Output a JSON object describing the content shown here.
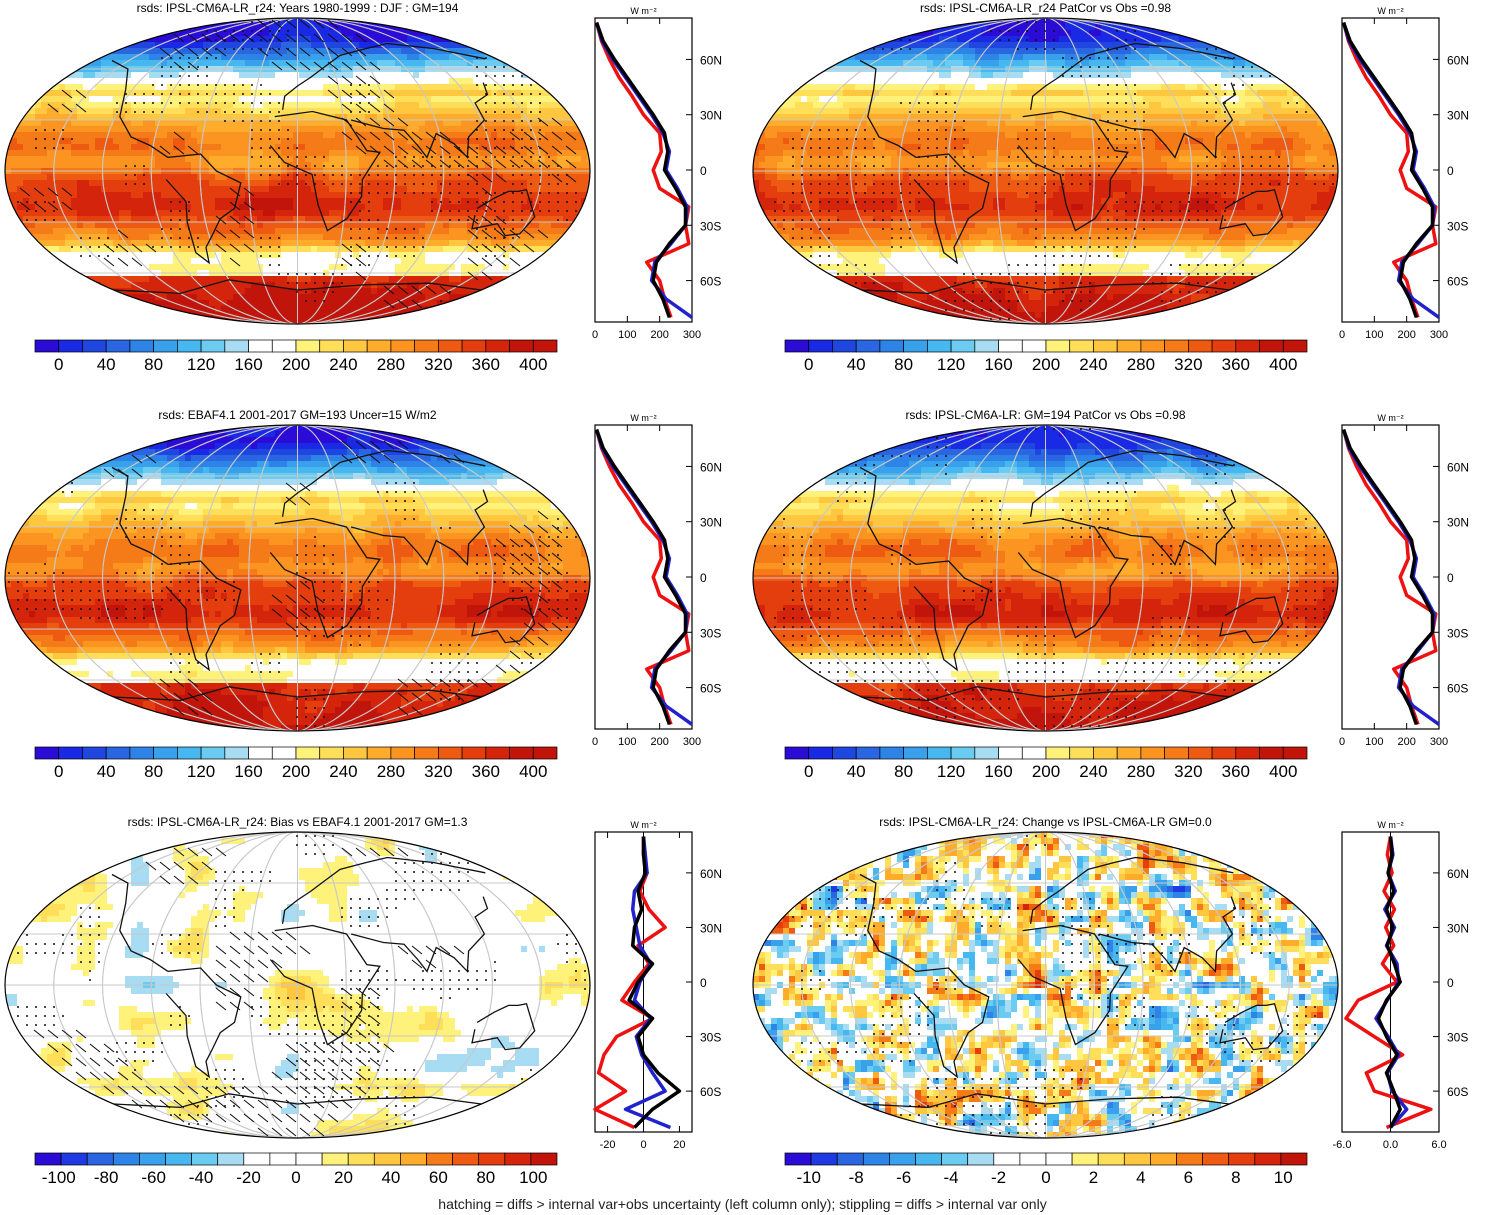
{
  "figure": {
    "footnote": "hatching = diffs > internal var+obs uncertainty (left column only); stippling = diffs > internal var only",
    "colors": {
      "model": "#000000",
      "obs": "#2222cc",
      "other": "#ee1111"
    }
  },
  "chart_data": [
    {
      "type": "heatmap",
      "title": "rsds: IPSL-CM6A-LR_r24: Years 1980-1999 : DJF : GM=194",
      "kind": "abs",
      "hatch": true,
      "stipple": true,
      "colorbar": {
        "ticks": [
          "0",
          "40",
          "80",
          "120",
          "160",
          "200",
          "240",
          "280",
          "320",
          "360",
          "400"
        ],
        "min": -20,
        "max": 420
      },
      "profile": {
        "unit": "W m⁻²",
        "lat_ticks": [
          "60N",
          "30N",
          "0",
          "30S",
          "60S"
        ],
        "x_ticks": [
          "0",
          "100",
          "200",
          "300"
        ],
        "xlim": [
          0,
          300
        ],
        "lat": [
          80,
          70,
          60,
          50,
          40,
          30,
          20,
          10,
          0,
          -10,
          -20,
          -30,
          -40,
          -50,
          -60,
          -70,
          -80
        ],
        "series": [
          {
            "color": "model",
            "values": [
              5,
              25,
              60,
              100,
              140,
              180,
              215,
              225,
              215,
              250,
              280,
              280,
              230,
              190,
              180,
              210,
              230
            ]
          },
          {
            "color": "obs",
            "values": [
              5,
              22,
              55,
              95,
              135,
              175,
              210,
              230,
              220,
              255,
              285,
              280,
              235,
              185,
              175,
              220,
              300
            ]
          },
          {
            "color": "other",
            "values": [
              5,
              20,
              45,
              75,
              115,
              150,
              200,
              205,
              180,
              200,
              290,
              280,
              290,
              160,
              200,
              215,
              235
            ]
          }
        ]
      }
    },
    {
      "type": "heatmap",
      "title": "rsds: IPSL-CM6A-LR_r24 PatCor vs Obs =0.98",
      "kind": "abs",
      "hatch": false,
      "stipple": true,
      "colorbar": {
        "ticks": [
          "0",
          "40",
          "80",
          "120",
          "160",
          "200",
          "240",
          "280",
          "320",
          "360",
          "400"
        ],
        "min": -20,
        "max": 420
      },
      "profile": {
        "unit": "W m⁻²",
        "lat_ticks": [
          "60N",
          "30N",
          "0",
          "30S",
          "60S"
        ],
        "x_ticks": [
          "0",
          "100",
          "200",
          "300"
        ],
        "xlim": [
          0,
          300
        ],
        "lat": [
          80,
          70,
          60,
          50,
          40,
          30,
          20,
          10,
          0,
          -10,
          -20,
          -30,
          -40,
          -50,
          -60,
          -70,
          -80
        ],
        "series": [
          {
            "color": "model",
            "values": [
              5,
              25,
              60,
              100,
              140,
              180,
              215,
              225,
              215,
              250,
              280,
              280,
              230,
              190,
              180,
              210,
              230
            ]
          },
          {
            "color": "obs",
            "values": [
              5,
              22,
              55,
              95,
              135,
              175,
              210,
              230,
              220,
              255,
              285,
              280,
              235,
              185,
              175,
              220,
              300
            ]
          },
          {
            "color": "other",
            "values": [
              5,
              20,
              45,
              75,
              115,
              150,
              200,
              205,
              180,
              200,
              290,
              280,
              290,
              160,
              200,
              215,
              235
            ]
          }
        ]
      }
    },
    {
      "type": "heatmap",
      "title": "rsds: EBAF4.1 2001-2017 GM=193 Uncer=15 W/m2",
      "kind": "abs",
      "hatch": true,
      "stipple": true,
      "colorbar": {
        "ticks": [
          "0",
          "40",
          "80",
          "120",
          "160",
          "200",
          "240",
          "280",
          "320",
          "360",
          "400"
        ],
        "min": -20,
        "max": 420
      },
      "profile": {
        "unit": "W m⁻²",
        "lat_ticks": [
          "60N",
          "30N",
          "0",
          "30S",
          "60S"
        ],
        "x_ticks": [
          "0",
          "100",
          "200",
          "300"
        ],
        "xlim": [
          0,
          300
        ],
        "lat": [
          80,
          70,
          60,
          50,
          40,
          30,
          20,
          10,
          0,
          -10,
          -20,
          -30,
          -40,
          -50,
          -60,
          -70,
          -80
        ],
        "series": [
          {
            "color": "model",
            "values": [
              5,
              25,
              60,
              100,
              140,
              180,
              215,
              225,
              215,
              250,
              280,
              280,
              230,
              190,
              180,
              210,
              230
            ]
          },
          {
            "color": "obs",
            "values": [
              5,
              22,
              55,
              95,
              135,
              175,
              210,
              230,
              220,
              255,
              285,
              280,
              235,
              185,
              175,
              220,
              300
            ]
          },
          {
            "color": "other",
            "values": [
              5,
              20,
              45,
              75,
              115,
              150,
              200,
              205,
              180,
              200,
              290,
              280,
              290,
              160,
              200,
              215,
              235
            ]
          }
        ]
      }
    },
    {
      "type": "heatmap",
      "title": "rsds: IPSL-CM6A-LR: GM=194 PatCor vs Obs =0.98",
      "kind": "abs",
      "hatch": false,
      "stipple": true,
      "colorbar": {
        "ticks": [
          "0",
          "40",
          "80",
          "120",
          "160",
          "200",
          "240",
          "280",
          "320",
          "360",
          "400"
        ],
        "min": -20,
        "max": 420
      },
      "profile": {
        "unit": "W m⁻²",
        "lat_ticks": [
          "60N",
          "30N",
          "0",
          "30S",
          "60S"
        ],
        "x_ticks": [
          "0",
          "100",
          "200",
          "300"
        ],
        "xlim": [
          0,
          300
        ],
        "lat": [
          80,
          70,
          60,
          50,
          40,
          30,
          20,
          10,
          0,
          -10,
          -20,
          -30,
          -40,
          -50,
          -60,
          -70,
          -80
        ],
        "series": [
          {
            "color": "model",
            "values": [
              5,
              25,
              60,
              100,
              140,
              180,
              215,
              225,
              215,
              250,
              280,
              280,
              230,
              190,
              180,
              210,
              230
            ]
          },
          {
            "color": "obs",
            "values": [
              5,
              22,
              55,
              95,
              135,
              175,
              210,
              230,
              220,
              255,
              285,
              280,
              235,
              185,
              175,
              220,
              300
            ]
          },
          {
            "color": "other",
            "values": [
              5,
              20,
              45,
              75,
              115,
              150,
              200,
              205,
              180,
              200,
              290,
              280,
              290,
              160,
              200,
              215,
              235
            ]
          }
        ]
      }
    },
    {
      "type": "heatmap",
      "title": "rsds: IPSL-CM6A-LR_r24: Bias vs EBAF4.1 2001-2017 GM=1.3",
      "kind": "bias",
      "hatch": true,
      "stipple": true,
      "colorbar": {
        "ticks": [
          "-100",
          "-80",
          "-60",
          "-40",
          "-20",
          "0",
          "20",
          "40",
          "60",
          "80",
          "100"
        ],
        "min": -110,
        "max": 110
      },
      "profile": {
        "unit": "W m⁻²",
        "lat_ticks": [
          "60N",
          "30N",
          "0",
          "30S",
          "60S"
        ],
        "x_ticks": [
          "-20",
          "0",
          "20"
        ],
        "xlim": [
          -27,
          27
        ],
        "lat": [
          80,
          70,
          60,
          50,
          40,
          30,
          20,
          10,
          0,
          -10,
          -20,
          -30,
          -40,
          -50,
          -60,
          -70,
          -80
        ],
        "series": [
          {
            "color": "model",
            "values": [
              0,
              0,
              1,
              -3,
              -1,
              -5,
              -6,
              5,
              -3,
              -8,
              5,
              -3,
              0,
              8,
              20,
              5,
              -5
            ]
          },
          {
            "color": "obs",
            "values": [
              0,
              1,
              2,
              -5,
              -6,
              -4,
              -2,
              4,
              -2,
              -5,
              4,
              -4,
              -1,
              5,
              12,
              -10,
              15
            ]
          },
          {
            "color": "other",
            "values": [
              0,
              0,
              2,
              -2,
              3,
              12,
              -3,
              3,
              -5,
              -12,
              5,
              -15,
              -22,
              -25,
              -10,
              -30,
              -5
            ]
          }
        ]
      }
    },
    {
      "type": "heatmap",
      "title": "rsds: IPSL-CM6A-LR_r24: Change vs IPSL-CM6A-LR GM=0.0",
      "kind": "change",
      "hatch": false,
      "stipple": true,
      "colorbar": {
        "ticks": [
          "-10",
          "-8",
          "-6",
          "-4",
          "-2",
          "0",
          "2",
          "4",
          "6",
          "8",
          "10"
        ],
        "min": -11,
        "max": 11
      },
      "profile": {
        "unit": "W m⁻²",
        "lat_ticks": [
          "60N",
          "30N",
          "0",
          "30S",
          "60S"
        ],
        "x_ticks": [
          "-6.0",
          "0.0",
          "6.0"
        ],
        "xlim": [
          -6,
          6
        ],
        "lat": [
          80,
          70,
          60,
          50,
          40,
          30,
          20,
          10,
          0,
          -10,
          -20,
          -30,
          -40,
          -50,
          -60,
          -70,
          -80
        ],
        "series": [
          {
            "color": "model",
            "values": [
              0,
              0.2,
              -0.3,
              0.4,
              -0.5,
              0.3,
              -0.4,
              0.5,
              1.2,
              -0.5,
              -1.5,
              -0.5,
              0.8,
              -0.5,
              0.4,
              1.2,
              0
            ]
          },
          {
            "color": "obs",
            "values": [
              0,
              0.3,
              -0.3,
              0.6,
              -0.7,
              0.5,
              -0.5,
              0.8,
              1.0,
              -0.4,
              -1.8,
              -0.3,
              1.0,
              -0.4,
              0.2,
              2.0,
              0
            ]
          },
          {
            "color": "other",
            "values": [
              0,
              -0.4,
              0.2,
              -0.8,
              0.5,
              -0.6,
              0.4,
              -1.0,
              0.8,
              -4.0,
              -5.5,
              -2.0,
              1.5,
              -3.0,
              -2.0,
              5.0,
              -0.5
            ]
          }
        ]
      }
    }
  ]
}
